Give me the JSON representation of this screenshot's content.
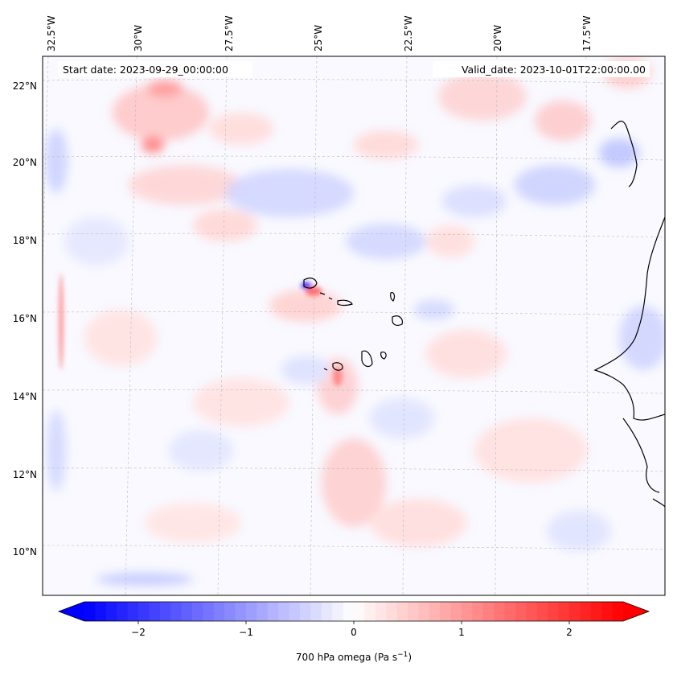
{
  "map": {
    "start_date": "Start date: 2023-09-29_00:00:00",
    "valid_date": "Valid_date: 2023-10-01T22:00:00.00",
    "lon_labels": [
      "32.5°W",
      "30°W",
      "27.5°W",
      "25°W",
      "22.5°W",
      "20°W",
      "17.5°W"
    ],
    "lat_labels": [
      "22°N",
      "20°N",
      "18°N",
      "16°N",
      "14°N",
      "12°N",
      "10°N"
    ]
  },
  "colorbar": {
    "label": "700 hPa omega (Pa s",
    "label_sup": "−1",
    "label_close": ")",
    "ticks": [
      "−2",
      "−1",
      "0",
      "1",
      "2"
    ],
    "tick_values": [
      -2,
      -1,
      0,
      1,
      2
    ],
    "vmin": -2.5,
    "vmax": 2.5,
    "colors": {
      "low": "#0000ff",
      "mid": "#ffffff",
      "high": "#ff0000"
    }
  }
}
